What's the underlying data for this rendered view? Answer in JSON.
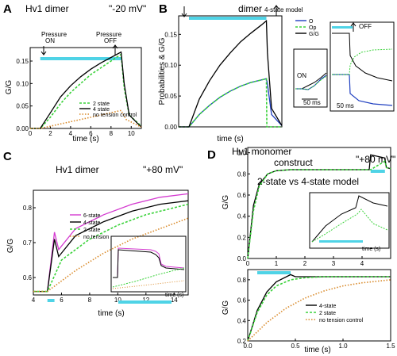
{
  "colors": {
    "black": "#000000",
    "green": "#3ad23a",
    "magenta": "#d43ad0",
    "cyan": "#4fd3e6",
    "blue": "#1f3fc0",
    "orange": "#d98a2a",
    "dotted": "#888888"
  },
  "panels": {
    "A": {
      "label": "A",
      "title": "Hv1 dimer",
      "condition": "\"-20 mV\"",
      "pressure_on": "Pressure\nON",
      "pressure_off": "Pressure\nOFF",
      "xlabel": "time (s)",
      "ylabel": "G/G",
      "legend": [
        "2 state",
        "4 state",
        "no tension control"
      ]
    },
    "B": {
      "label": "B",
      "title": "dimer",
      "subtitle": "4-state model",
      "xlabel": "time (s)",
      "ylabel": "Probabilities & G/G",
      "legend": [
        "O",
        "Op",
        "G/G"
      ],
      "inset1_on": "ON",
      "inset1_scale": "50 ms",
      "inset2_off": "OFF",
      "inset2_scale": "50 ms"
    },
    "C": {
      "label": "C",
      "title": "Hv1 dimer",
      "condition": "\"+80 mV\"",
      "xlabel": "time (s)",
      "ylabel": "G/G",
      "legend": [
        "6-state",
        "4-state",
        "2-state",
        "no tension"
      ],
      "inset_xlabel": "time (s)",
      "inset_ylabel": "G/G"
    },
    "D": {
      "label": "D",
      "title": "Hv1 monomer",
      "title2": "construct",
      "condition": "\"+80 mV\"",
      "model_note": "2-state vs 4-state model",
      "xlabel": "time (s)",
      "ylabel": "G/G",
      "legend": [
        "4-state",
        "2 state",
        "no tension control"
      ],
      "inset_xlabel": "time (s)",
      "inset_ylabel": "G/G"
    }
  },
  "chart_data": [
    {
      "panel": "A",
      "type": "line",
      "xlim": [
        0,
        11
      ],
      "ylim": [
        0,
        0.18
      ],
      "xticks": [
        "0",
        "2",
        "4",
        "6",
        "8",
        "10"
      ],
      "yticks": [
        "0.00",
        "0.05",
        "0.10",
        "0.15"
      ],
      "stimulus": [
        1,
        9
      ],
      "series": [
        {
          "name": "2 state",
          "x": [
            0,
            1,
            2,
            3,
            4,
            5,
            6,
            7,
            8,
            9,
            9.3,
            9.8,
            11
          ],
          "y": [
            0,
            0,
            0.025,
            0.055,
            0.08,
            0.1,
            0.12,
            0.135,
            0.15,
            0.165,
            0.09,
            0.03,
            0.005
          ]
        },
        {
          "name": "4 state",
          "x": [
            0,
            1,
            2,
            3,
            4,
            5,
            6,
            7,
            8,
            9,
            9.3,
            9.8,
            11
          ],
          "y": [
            0,
            0,
            0.035,
            0.07,
            0.095,
            0.115,
            0.132,
            0.146,
            0.158,
            0.17,
            0.1,
            0.03,
            0.003
          ]
        },
        {
          "name": "no tension control",
          "x": [
            0,
            1,
            3,
            5,
            7,
            9,
            9.5,
            11
          ],
          "y": [
            0,
            0,
            0.01,
            0.02,
            0.03,
            0.04,
            0.02,
            0.003
          ]
        }
      ]
    },
    {
      "panel": "B",
      "type": "line",
      "xlim": [
        0,
        10
      ],
      "ylim": [
        0,
        0.18
      ],
      "yticks": [
        "0.00",
        "0.05",
        "0.10",
        "0.15"
      ],
      "stimulus": [
        1,
        8.5
      ],
      "series": [
        {
          "name": "O",
          "x": [
            0,
            1,
            2,
            3,
            4,
            5,
            6,
            7,
            8,
            8.5,
            8.6,
            9,
            10
          ],
          "y": [
            0,
            0,
            0.02,
            0.035,
            0.048,
            0.058,
            0.066,
            0.072,
            0.076,
            0.078,
            0.07,
            0.02,
            0.002
          ]
        },
        {
          "name": "Op",
          "x": [
            0,
            1,
            2,
            3,
            4,
            5,
            6,
            7,
            8,
            8.5,
            8.55,
            10
          ],
          "y": [
            0,
            0,
            0.02,
            0.035,
            0.048,
            0.058,
            0.066,
            0.072,
            0.076,
            0.078,
            0,
            0
          ]
        },
        {
          "name": "G/G",
          "x": [
            0,
            1,
            2,
            3,
            4,
            5,
            6,
            7,
            8,
            8.5,
            8.6,
            9,
            10
          ],
          "y": [
            0,
            0,
            0.045,
            0.075,
            0.1,
            0.12,
            0.138,
            0.152,
            0.165,
            0.172,
            0.12,
            0.03,
            0.002
          ]
        }
      ]
    },
    {
      "panel": "C",
      "type": "line",
      "xlim": [
        4,
        15
      ],
      "ylim": [
        0.55,
        0.85
      ],
      "xticks": [
        "4",
        "6",
        "8",
        "10",
        "12",
        "14"
      ],
      "yticks": [
        "0.6",
        "0.7",
        "0.8"
      ],
      "stimulus": [
        5,
        5.5
      ],
      "series": [
        {
          "name": "6-state",
          "x": [
            4,
            5,
            5.5,
            5.8,
            7,
            9,
            11,
            13,
            15
          ],
          "y": [
            0.56,
            0.56,
            0.73,
            0.68,
            0.74,
            0.78,
            0.81,
            0.83,
            0.84
          ]
        },
        {
          "name": "4-state",
          "x": [
            4,
            5,
            5.5,
            5.8,
            7,
            9,
            11,
            13,
            15
          ],
          "y": [
            0.56,
            0.56,
            0.71,
            0.66,
            0.72,
            0.76,
            0.79,
            0.81,
            0.82
          ]
        },
        {
          "name": "2-state",
          "x": [
            4,
            5,
            6,
            8,
            10,
            12,
            15
          ],
          "y": [
            0.56,
            0.56,
            0.65,
            0.71,
            0.75,
            0.78,
            0.81
          ]
        },
        {
          "name": "no tension",
          "x": [
            4,
            5,
            7,
            9,
            11,
            13,
            15
          ],
          "y": [
            0.56,
            0.56,
            0.62,
            0.67,
            0.71,
            0.74,
            0.77
          ]
        }
      ]
    },
    {
      "panel": "D-top",
      "type": "line",
      "xlim": [
        0,
        5
      ],
      "ylim": [
        0,
        1.05
      ],
      "xticks": [
        "0",
        "1",
        "2",
        "3",
        "4"
      ],
      "yticks": [
        "0.0",
        "0.2",
        "0.4",
        "0.6",
        "0.8",
        "1.0"
      ],
      "stimulus": [
        4.3,
        4.8
      ],
      "series": [
        {
          "name": "4-state",
          "x": [
            0,
            0.2,
            0.4,
            0.7,
            1,
            1.5,
            2,
            3,
            4,
            4.25,
            4.3,
            4.8,
            4.85,
            5
          ],
          "y": [
            0,
            0.5,
            0.7,
            0.8,
            0.83,
            0.84,
            0.84,
            0.84,
            0.84,
            0.84,
            0.98,
            0.95,
            0.86,
            0.85
          ]
        },
        {
          "name": "2 state",
          "x": [
            0,
            0.2,
            0.4,
            0.7,
            1,
            1.5,
            2,
            3,
            4,
            4.3,
            4.8,
            4.85,
            5
          ],
          "y": [
            0,
            0.45,
            0.68,
            0.8,
            0.83,
            0.84,
            0.84,
            0.84,
            0.84,
            0.84,
            0.92,
            0.86,
            0.85
          ]
        }
      ]
    },
    {
      "panel": "D-bottom",
      "type": "line",
      "xlim": [
        0,
        1.5
      ],
      "ylim": [
        0.2,
        0.9
      ],
      "xticks": [
        "0.0",
        "0.5",
        "1.0",
        "1.5"
      ],
      "yticks": [
        "0.2",
        "0.4",
        "0.6",
        "0.8"
      ],
      "stimulus": [
        0.1,
        0.45
      ],
      "series": [
        {
          "name": "4-state",
          "x": [
            0,
            0.1,
            0.2,
            0.3,
            0.45,
            0.5,
            0.6,
            0.8,
            1.0,
            1.5
          ],
          "y": [
            0.2,
            0.5,
            0.68,
            0.78,
            0.85,
            0.83,
            0.83,
            0.83,
            0.83,
            0.83
          ]
        },
        {
          "name": "2 state",
          "x": [
            0,
            0.1,
            0.2,
            0.3,
            0.45,
            0.6,
            0.8,
            1.0,
            1.5
          ],
          "y": [
            0.2,
            0.48,
            0.65,
            0.74,
            0.8,
            0.82,
            0.83,
            0.83,
            0.83
          ]
        },
        {
          "name": "no tension control",
          "x": [
            0,
            0.2,
            0.4,
            0.6,
            0.8,
            1.0,
            1.2,
            1.5
          ],
          "y": [
            0.2,
            0.38,
            0.52,
            0.62,
            0.69,
            0.74,
            0.77,
            0.8
          ]
        }
      ]
    }
  ]
}
